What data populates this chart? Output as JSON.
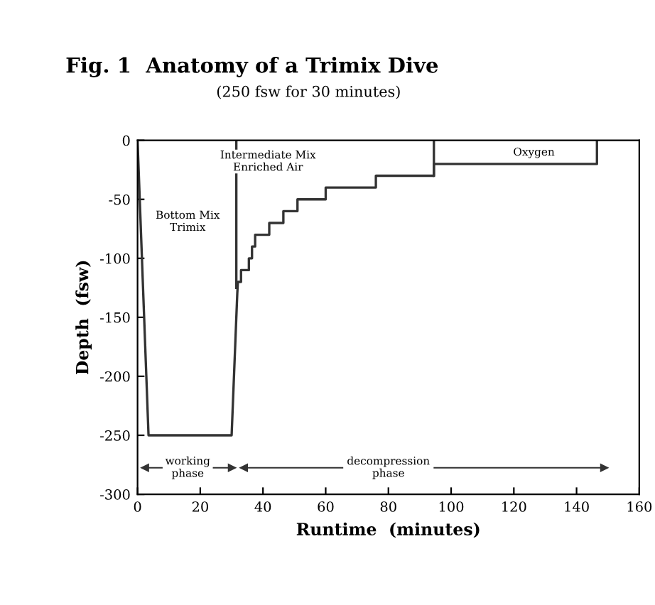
{
  "chart_data": {
    "type": "line",
    "title": "Fig. 1  Anatomy of a Trimix Dive",
    "subtitle": "(250 fsw for 30 minutes)",
    "xlabel": "Runtime  (minutes)",
    "ylabel": "Depth  (fsw)",
    "series": [
      {
        "color": "#333333",
        "x": [
          0,
          3.5,
          30,
          31.8,
          32,
          33,
          33,
          35.5,
          35.5,
          36.5,
          36.5,
          37.5,
          37.5,
          42,
          42,
          46.5,
          46.5,
          51,
          51,
          60,
          60,
          76,
          76,
          94.5,
          94.5,
          146.5,
          146.5
        ],
        "values": [
          0,
          -250,
          -250,
          -130,
          -120,
          -120,
          -110,
          -110,
          -100,
          -100,
          -90,
          -90,
          -80,
          -80,
          -70,
          -70,
          -60,
          -60,
          -50,
          -50,
          -40,
          -40,
          -30,
          -30,
          -20,
          -20,
          0
        ]
      },
      {
        "color": "#333333",
        "x": [
          31.5,
          31.5
        ],
        "values": [
          0,
          -125
        ]
      },
      {
        "color": "#333333",
        "x": [
          94.5,
          94.5
        ],
        "values": [
          0,
          -30
        ]
      }
    ],
    "annotations": [
      "Bottom Mix\nTrimix",
      "Intermediate Mix\nEnriched Air",
      "Oxygen",
      "working\nphase",
      "decompression\nphase"
    ],
    "xlim": [
      0,
      160
    ],
    "xticks": [
      0,
      20,
      40,
      60,
      80,
      100,
      120,
      140,
      160
    ],
    "ylim": [
      -300,
      0
    ],
    "yticks": [
      -300,
      -250,
      -200,
      -150,
      -100,
      -50,
      0
    ],
    "grid": false,
    "marker": "none",
    "line_style": "solid"
  }
}
